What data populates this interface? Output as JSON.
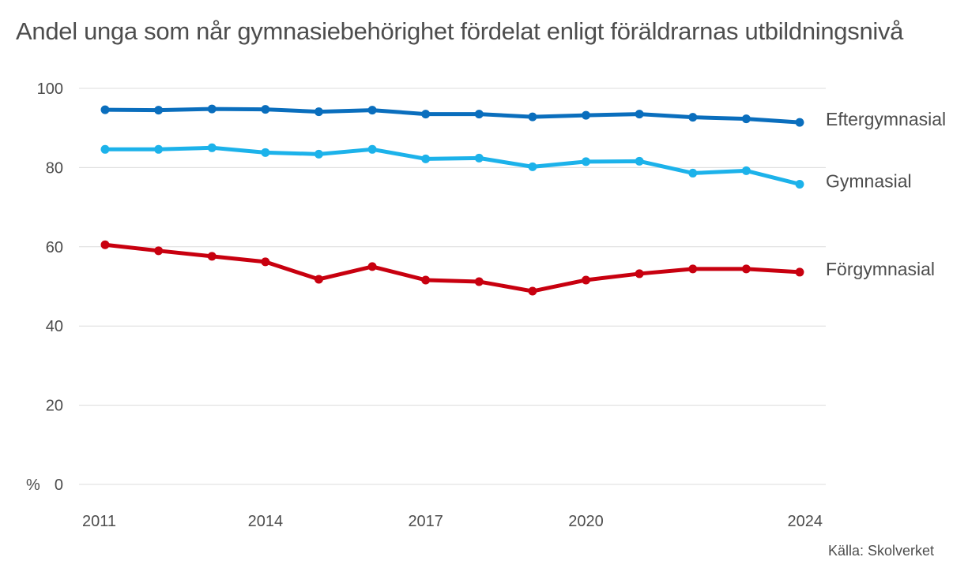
{
  "title": "Andel unga som når gymnasiebehörighet fördelat enligt föräldrarnas utbildningsnivå",
  "source": "Källa: Skolverket",
  "chart_data": {
    "type": "line",
    "title": "Andel unga som når gymnasiebehörighet fördelat enligt föräldrarnas utbildningsnivå",
    "ylabel": "%",
    "xlabel": "",
    "ylim": [
      0,
      100
    ],
    "yticks": [
      0,
      20,
      40,
      60,
      80,
      100
    ],
    "xticks": [
      "2011",
      "2014",
      "2017",
      "2020",
      "2024"
    ],
    "x": [
      2011,
      2012,
      2013,
      2014,
      2015,
      2016,
      2017,
      2018,
      2019,
      2020,
      2021,
      2022,
      2023,
      2024
    ],
    "grid": true,
    "series": [
      {
        "name": "Eftergymnasial",
        "color": "#0a6ebd",
        "values": [
          94.6,
          94.5,
          94.8,
          94.7,
          94.1,
          94.5,
          93.5,
          93.5,
          92.8,
          93.2,
          93.5,
          92.7,
          92.3,
          91.4
        ]
      },
      {
        "name": "Gymnasial",
        "color": "#1cb2ea",
        "values": [
          84.6,
          84.6,
          85.0,
          83.8,
          83.4,
          84.6,
          82.2,
          82.4,
          80.2,
          81.5,
          81.6,
          78.6,
          79.2,
          75.8
        ]
      },
      {
        "name": "Förgymnasial",
        "color": "#c8000f",
        "values": [
          60.5,
          59.0,
          57.6,
          56.2,
          51.8,
          55.0,
          51.6,
          51.2,
          48.8,
          51.6,
          53.2,
          54.4,
          54.4,
          53.6
        ]
      }
    ]
  }
}
